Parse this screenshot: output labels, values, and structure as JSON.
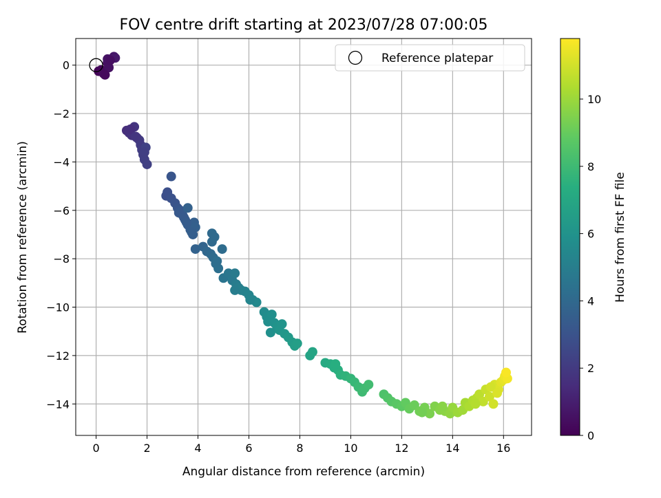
{
  "chart_data": {
    "type": "scatter",
    "title": "FOV centre drift starting at 2023/07/28 07:00:05",
    "xlabel": "Angular distance from reference (arcmin)",
    "ylabel": "Rotation from reference (arcmin)",
    "xlim": [
      -0.8,
      17.1
    ],
    "ylim": [
      -15.3,
      1.1
    ],
    "x_ticks": [
      0,
      2,
      4,
      6,
      8,
      10,
      12,
      14,
      16
    ],
    "y_ticks": [
      0,
      -2,
      -4,
      -6,
      -8,
      -10,
      -12,
      -14
    ],
    "x_tick_labels": [
      "0",
      "2",
      "4",
      "6",
      "8",
      "10",
      "12",
      "14",
      "16"
    ],
    "y_tick_labels": [
      "0",
      "−2",
      "−4",
      "−6",
      "−8",
      "−10",
      "−12",
      "−14"
    ],
    "grid": true,
    "legend": {
      "position": "top-right",
      "entries": [
        {
          "label": "Reference platepar",
          "marker": "open-circle",
          "x": 0,
          "y": 0
        }
      ]
    },
    "colorbar": {
      "label": "Hours from first FF file",
      "colormap": "viridis",
      "range": [
        0,
        11.8
      ],
      "ticks": [
        0,
        2,
        4,
        6,
        8,
        10
      ],
      "tick_labels": [
        "0",
        "2",
        "4",
        "6",
        "8",
        "10"
      ]
    },
    "points": [
      [
        0.1,
        -0.25,
        0.1
      ],
      [
        0.2,
        -0.2,
        0.2
      ],
      [
        0.3,
        -0.35,
        0.3
      ],
      [
        0.45,
        0.1,
        0.4
      ],
      [
        0.5,
        -0.1,
        0.5
      ],
      [
        0.45,
        0.25,
        0.6
      ],
      [
        0.7,
        0.35,
        0.7
      ],
      [
        0.75,
        0.3,
        0.8
      ],
      [
        0.35,
        -0.4,
        0.25
      ],
      [
        0.55,
        0.2,
        0.45
      ],
      [
        1.2,
        -2.7,
        1.5
      ],
      [
        1.3,
        -2.8,
        1.6
      ],
      [
        1.4,
        -2.9,
        1.7
      ],
      [
        1.5,
        -2.55,
        1.8
      ],
      [
        1.6,
        -3.0,
        1.9
      ],
      [
        1.7,
        -3.1,
        2.0
      ],
      [
        1.75,
        -3.3,
        2.05
      ],
      [
        1.8,
        -3.5,
        2.1
      ],
      [
        1.85,
        -3.7,
        2.15
      ],
      [
        1.9,
        -3.9,
        2.2
      ],
      [
        2.0,
        -4.1,
        2.25
      ],
      [
        1.95,
        -3.4,
        2.3
      ],
      [
        1.35,
        -2.65,
        1.55
      ],
      [
        1.55,
        -2.95,
        1.85
      ],
      [
        1.9,
        -3.6,
        2.2
      ],
      [
        2.75,
        -5.4,
        2.8
      ],
      [
        2.8,
        -5.25,
        2.85
      ],
      [
        2.95,
        -5.5,
        2.9
      ],
      [
        3.1,
        -5.7,
        3.0
      ],
      [
        3.2,
        -5.9,
        3.1
      ],
      [
        3.3,
        -6.0,
        3.2
      ],
      [
        3.4,
        -6.2,
        3.3
      ],
      [
        3.5,
        -6.4,
        3.35
      ],
      [
        3.6,
        -6.6,
        3.4
      ],
      [
        3.7,
        -6.8,
        3.45
      ],
      [
        3.8,
        -7.0,
        3.5
      ],
      [
        3.85,
        -6.5,
        3.55
      ],
      [
        3.9,
        -6.7,
        3.6
      ],
      [
        3.6,
        -5.9,
        3.65
      ],
      [
        2.95,
        -4.6,
        3.1
      ],
      [
        3.25,
        -6.1,
        3.25
      ],
      [
        3.45,
        -6.3,
        3.3
      ],
      [
        3.75,
        -6.9,
        3.5
      ],
      [
        3.55,
        -6.5,
        3.4
      ],
      [
        3.9,
        -7.6,
        3.7
      ],
      [
        4.2,
        -7.5,
        3.8
      ],
      [
        4.35,
        -7.7,
        3.9
      ],
      [
        4.5,
        -7.8,
        4.0
      ],
      [
        4.6,
        -7.95,
        4.1
      ],
      [
        4.7,
        -8.2,
        4.2
      ],
      [
        4.8,
        -8.4,
        4.3
      ],
      [
        4.55,
        -7.3,
        4.0
      ],
      [
        4.55,
        -6.95,
        4.05
      ],
      [
        4.95,
        -7.6,
        4.15
      ],
      [
        4.65,
        -7.1,
        4.05
      ],
      [
        4.75,
        -8.1,
        4.25
      ],
      [
        5.0,
        -8.8,
        4.5
      ],
      [
        5.2,
        -8.6,
        4.6
      ],
      [
        5.35,
        -8.9,
        4.7
      ],
      [
        5.45,
        -8.6,
        4.8
      ],
      [
        5.5,
        -9.05,
        4.9
      ],
      [
        5.6,
        -9.2,
        5.0
      ],
      [
        5.7,
        -9.3,
        5.1
      ],
      [
        5.85,
        -9.35,
        5.2
      ],
      [
        6.0,
        -9.5,
        5.3
      ],
      [
        6.15,
        -9.7,
        5.4
      ],
      [
        6.3,
        -9.8,
        5.5
      ],
      [
        5.45,
        -9.3,
        4.95
      ],
      [
        6.05,
        -9.7,
        5.35
      ],
      [
        6.6,
        -10.2,
        5.6
      ],
      [
        6.7,
        -10.4,
        5.7
      ],
      [
        6.75,
        -10.6,
        5.75
      ],
      [
        6.9,
        -10.3,
        5.8
      ],
      [
        7.0,
        -10.65,
        5.9
      ],
      [
        7.1,
        -10.8,
        6.0
      ],
      [
        7.2,
        -10.95,
        6.1
      ],
      [
        7.4,
        -11.1,
        6.2
      ],
      [
        7.55,
        -11.25,
        6.3
      ],
      [
        7.7,
        -11.45,
        6.4
      ],
      [
        7.8,
        -11.6,
        6.5
      ],
      [
        7.9,
        -11.5,
        6.55
      ],
      [
        6.85,
        -11.05,
        5.85
      ],
      [
        7.3,
        -10.7,
        6.05
      ],
      [
        8.4,
        -12.0,
        6.8
      ],
      [
        8.5,
        -11.85,
        6.85
      ],
      [
        9.0,
        -12.3,
        7.1
      ],
      [
        9.2,
        -12.35,
        7.2
      ],
      [
        9.35,
        -12.5,
        7.3
      ],
      [
        9.5,
        -12.6,
        7.4
      ],
      [
        9.6,
        -12.8,
        7.5
      ],
      [
        9.8,
        -12.85,
        7.6
      ],
      [
        10.0,
        -12.95,
        7.7
      ],
      [
        10.15,
        -13.1,
        7.8
      ],
      [
        10.3,
        -13.3,
        7.9
      ],
      [
        10.45,
        -13.5,
        8.0
      ],
      [
        10.55,
        -13.35,
        8.05
      ],
      [
        10.7,
        -13.2,
        8.1
      ],
      [
        9.4,
        -12.35,
        7.35
      ],
      [
        11.3,
        -13.6,
        8.4
      ],
      [
        11.45,
        -13.75,
        8.5
      ],
      [
        11.6,
        -13.9,
        8.6
      ],
      [
        11.8,
        -14.0,
        8.7
      ],
      [
        12.0,
        -14.1,
        8.8
      ],
      [
        12.15,
        -13.95,
        8.9
      ],
      [
        12.3,
        -14.2,
        9.0
      ],
      [
        12.5,
        -14.05,
        9.1
      ],
      [
        12.7,
        -14.3,
        9.2
      ],
      [
        12.9,
        -14.15,
        9.3
      ],
      [
        13.1,
        -14.4,
        9.4
      ],
      [
        13.3,
        -14.1,
        9.5
      ],
      [
        13.5,
        -14.25,
        9.6
      ],
      [
        13.7,
        -14.3,
        9.7
      ],
      [
        13.9,
        -14.4,
        9.8
      ],
      [
        14.0,
        -14.15,
        9.9
      ],
      [
        14.2,
        -14.35,
        10.0
      ],
      [
        14.4,
        -14.25,
        10.1
      ],
      [
        12.8,
        -14.35,
        9.25
      ],
      [
        13.6,
        -14.1,
        9.65
      ],
      [
        14.5,
        -13.95,
        10.2
      ],
      [
        14.65,
        -14.1,
        10.3
      ],
      [
        14.8,
        -13.85,
        10.4
      ],
      [
        14.95,
        -13.75,
        10.5
      ],
      [
        15.05,
        -13.6,
        10.6
      ],
      [
        15.2,
        -13.9,
        10.7
      ],
      [
        15.3,
        -13.4,
        10.8
      ],
      [
        15.45,
        -13.7,
        10.9
      ],
      [
        15.6,
        -14.0,
        11.0
      ],
      [
        15.65,
        -13.2,
        11.1
      ],
      [
        15.8,
        -13.4,
        11.2
      ],
      [
        15.9,
        -13.1,
        11.3
      ],
      [
        16.0,
        -13.0,
        11.4
      ],
      [
        16.05,
        -12.85,
        11.5
      ],
      [
        16.15,
        -12.95,
        11.6
      ],
      [
        16.1,
        -12.7,
        11.7
      ],
      [
        15.5,
        -13.3,
        11.0
      ],
      [
        15.75,
        -13.55,
        11.15
      ],
      [
        14.9,
        -14.0,
        10.45
      ]
    ]
  }
}
